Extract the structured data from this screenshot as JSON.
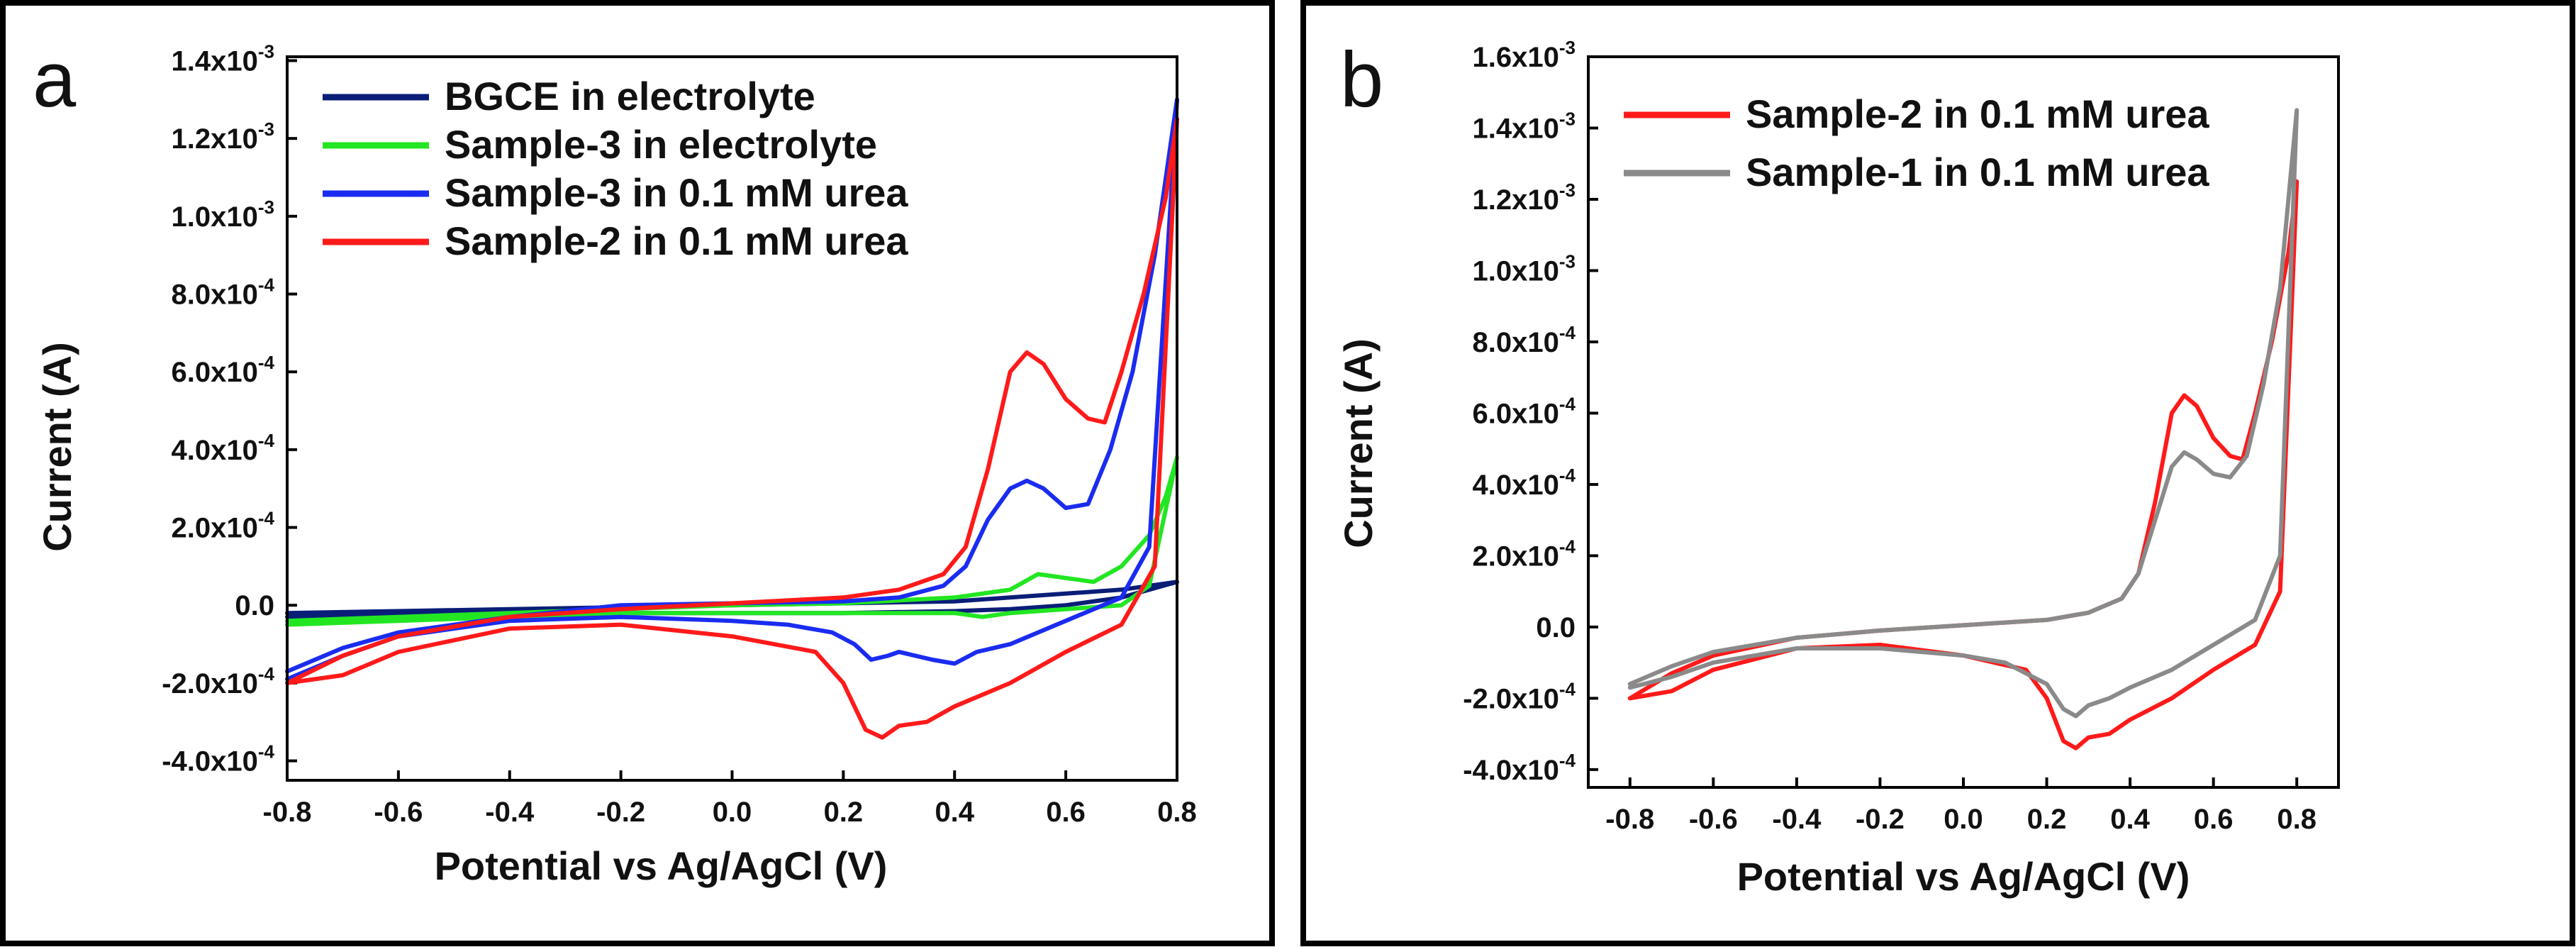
{
  "chart_data": [
    {
      "panel_label": "a",
      "type": "line",
      "xlabel": "Potential vs Ag/AgCl (V)",
      "ylabel": "Current (A)",
      "xlim": [
        -0.8,
        0.8
      ],
      "ylim": [
        -0.00045,
        0.00141
      ],
      "x_ticks": [
        -0.8,
        -0.6,
        -0.4,
        -0.2,
        0.0,
        0.2,
        0.4,
        0.6,
        0.8
      ],
      "x_tick_labels": [
        "-0.8",
        "-0.6",
        "-0.4",
        "-0.2",
        "0.0",
        "0.2",
        "0.4",
        "0.6",
        "0.8"
      ],
      "y_ticks": [
        {
          "value": -0.0004,
          "mant": "-4.0x10",
          "exp": "-4"
        },
        {
          "value": -0.0002,
          "mant": "-2.0x10",
          "exp": "-4"
        },
        {
          "value": 0.0,
          "mant": "0.0",
          "exp": ""
        },
        {
          "value": 0.0002,
          "mant": "2.0x10",
          "exp": "-4"
        },
        {
          "value": 0.0004,
          "mant": "4.0x10",
          "exp": "-4"
        },
        {
          "value": 0.0006,
          "mant": "6.0x10",
          "exp": "-4"
        },
        {
          "value": 0.0008,
          "mant": "8.0x10",
          "exp": "-4"
        },
        {
          "value": 0.001,
          "mant": "1.0x10",
          "exp": "-3"
        },
        {
          "value": 0.0012,
          "mant": "1.2x10",
          "exp": "-3"
        },
        {
          "value": 0.0014,
          "mant": "1.4x10",
          "exp": "-3"
        }
      ],
      "legend_position": "top-left",
      "series": [
        {
          "name": "BGCE in electrolyte",
          "color": "#0a1e78",
          "forward": [
            [
              -0.8,
              -2e-05
            ],
            [
              -0.6,
              -1.5e-05
            ],
            [
              -0.4,
              -1e-05
            ],
            [
              -0.2,
              -5e-06
            ],
            [
              0.0,
              0.0
            ],
            [
              0.2,
              5e-06
            ],
            [
              0.4,
              1e-05
            ],
            [
              0.5,
              2e-05
            ],
            [
              0.6,
              3e-05
            ],
            [
              0.7,
              4e-05
            ],
            [
              0.8,
              6e-05
            ]
          ],
          "reverse": [
            [
              0.8,
              6e-05
            ],
            [
              0.7,
              2e-05
            ],
            [
              0.6,
              0.0
            ],
            [
              0.5,
              -1e-05
            ],
            [
              0.4,
              -1.5e-05
            ],
            [
              0.2,
              -2e-05
            ],
            [
              0.0,
              -2e-05
            ],
            [
              -0.2,
              -2e-05
            ],
            [
              -0.4,
              -2e-05
            ],
            [
              -0.6,
              -2.5e-05
            ],
            [
              -0.8,
              -3e-05
            ]
          ]
        },
        {
          "name": "Sample-3 in electrolyte",
          "color": "#22e622",
          "forward": [
            [
              -0.8,
              -4e-05
            ],
            [
              -0.6,
              -3e-05
            ],
            [
              -0.4,
              -2e-05
            ],
            [
              -0.2,
              -1e-05
            ],
            [
              0.0,
              0.0
            ],
            [
              0.2,
              5e-06
            ],
            [
              0.4,
              2e-05
            ],
            [
              0.5,
              4e-05
            ],
            [
              0.55,
              8e-05
            ],
            [
              0.6,
              7e-05
            ],
            [
              0.65,
              6e-05
            ],
            [
              0.7,
              0.0001
            ],
            [
              0.75,
              0.00018
            ],
            [
              0.78,
              0.00028
            ],
            [
              0.8,
              0.00038
            ]
          ],
          "reverse": [
            [
              0.8,
              0.00038
            ],
            [
              0.75,
              5e-05
            ],
            [
              0.7,
              0.0
            ],
            [
              0.6,
              -1e-05
            ],
            [
              0.5,
              -2e-05
            ],
            [
              0.45,
              -3e-05
            ],
            [
              0.4,
              -2e-05
            ],
            [
              0.2,
              -2e-05
            ],
            [
              0.0,
              -2e-05
            ],
            [
              -0.2,
              -2e-05
            ],
            [
              -0.4,
              -3e-05
            ],
            [
              -0.6,
              -4e-05
            ],
            [
              -0.8,
              -5e-05
            ]
          ]
        },
        {
          "name": "Sample-3 in 0.1 mM urea",
          "color": "#1a2cf0",
          "forward": [
            [
              -0.8,
              -0.00017
            ],
            [
              -0.7,
              -0.00011
            ],
            [
              -0.6,
              -7e-05
            ],
            [
              -0.4,
              -3e-05
            ],
            [
              -0.2,
              0.0
            ],
            [
              0.0,
              5e-06
            ],
            [
              0.2,
              1e-05
            ],
            [
              0.3,
              2e-05
            ],
            [
              0.38,
              5e-05
            ],
            [
              0.42,
              0.0001
            ],
            [
              0.46,
              0.00022
            ],
            [
              0.5,
              0.0003
            ],
            [
              0.53,
              0.00032
            ],
            [
              0.56,
              0.0003
            ],
            [
              0.6,
              0.00025
            ],
            [
              0.64,
              0.00026
            ],
            [
              0.68,
              0.0004
            ],
            [
              0.72,
              0.0006
            ],
            [
              0.76,
              0.0009
            ],
            [
              0.8,
              0.0013
            ]
          ],
          "reverse": [
            [
              0.8,
              0.0013
            ],
            [
              0.75,
              0.00015
            ],
            [
              0.7,
              2e-05
            ],
            [
              0.6,
              -4e-05
            ],
            [
              0.5,
              -0.0001
            ],
            [
              0.44,
              -0.00012
            ],
            [
              0.4,
              -0.00015
            ],
            [
              0.36,
              -0.00014
            ],
            [
              0.3,
              -0.00012
            ],
            [
              0.28,
              -0.00013
            ],
            [
              0.25,
              -0.00014
            ],
            [
              0.22,
              -0.0001
            ],
            [
              0.18,
              -7e-05
            ],
            [
              0.1,
              -5e-05
            ],
            [
              0.0,
              -4e-05
            ],
            [
              -0.2,
              -3e-05
            ],
            [
              -0.4,
              -4e-05
            ],
            [
              -0.6,
              -8e-05
            ],
            [
              -0.7,
              -0.00013
            ],
            [
              -0.8,
              -0.00019
            ]
          ]
        },
        {
          "name": "Sample-2 in 0.1 mM urea",
          "color": "#ff1a1a",
          "forward": [
            [
              -0.8,
              -0.0002
            ],
            [
              -0.7,
              -0.00013
            ],
            [
              -0.6,
              -8e-05
            ],
            [
              -0.4,
              -3e-05
            ],
            [
              -0.2,
              -1e-05
            ],
            [
              0.0,
              5e-06
            ],
            [
              0.2,
              2e-05
            ],
            [
              0.3,
              4e-05
            ],
            [
              0.38,
              8e-05
            ],
            [
              0.42,
              0.00015
            ],
            [
              0.46,
              0.00035
            ],
            [
              0.5,
              0.0006
            ],
            [
              0.53,
              0.00065
            ],
            [
              0.56,
              0.00062
            ],
            [
              0.6,
              0.00053
            ],
            [
              0.64,
              0.00048
            ],
            [
              0.67,
              0.00047
            ],
            [
              0.7,
              0.0006
            ],
            [
              0.74,
              0.0008
            ],
            [
              0.78,
              0.00105
            ],
            [
              0.8,
              0.00125
            ]
          ],
          "reverse": [
            [
              0.8,
              0.00125
            ],
            [
              0.76,
              0.0001
            ],
            [
              0.7,
              -5e-05
            ],
            [
              0.6,
              -0.00012
            ],
            [
              0.5,
              -0.0002
            ],
            [
              0.4,
              -0.00026
            ],
            [
              0.35,
              -0.0003
            ],
            [
              0.3,
              -0.00031
            ],
            [
              0.27,
              -0.00034
            ],
            [
              0.24,
              -0.00032
            ],
            [
              0.2,
              -0.0002
            ],
            [
              0.15,
              -0.00012
            ],
            [
              0.0,
              -8e-05
            ],
            [
              -0.2,
              -5e-05
            ],
            [
              -0.4,
              -6e-05
            ],
            [
              -0.6,
              -0.00012
            ],
            [
              -0.7,
              -0.00018
            ],
            [
              -0.8,
              -0.0002
            ]
          ]
        }
      ]
    },
    {
      "panel_label": "b",
      "type": "line",
      "xlabel": "Potential vs Ag/AgCl (V)",
      "ylabel": "Current (A)",
      "xlim": [
        -0.9,
        0.9
      ],
      "ylim": [
        -0.00045,
        0.0016
      ],
      "x_ticks": [
        -0.8,
        -0.6,
        -0.4,
        -0.2,
        0.0,
        0.2,
        0.4,
        0.6,
        0.8
      ],
      "x_tick_labels": [
        "-0.8",
        "-0.6",
        "-0.4",
        "-0.2",
        "0.0",
        "0.2",
        "0.4",
        "0.6",
        "0.8"
      ],
      "y_ticks": [
        {
          "value": -0.0004,
          "mant": "-4.0x10",
          "exp": "-4"
        },
        {
          "value": -0.0002,
          "mant": "-2.0x10",
          "exp": "-4"
        },
        {
          "value": 0.0,
          "mant": "0.0",
          "exp": ""
        },
        {
          "value": 0.0002,
          "mant": "2.0x10",
          "exp": "-4"
        },
        {
          "value": 0.0004,
          "mant": "4.0x10",
          "exp": "-4"
        },
        {
          "value": 0.0006,
          "mant": "6.0x10",
          "exp": "-4"
        },
        {
          "value": 0.0008,
          "mant": "8.0x10",
          "exp": "-4"
        },
        {
          "value": 0.001,
          "mant": "1.0x10",
          "exp": "-3"
        },
        {
          "value": 0.0012,
          "mant": "1.2x10",
          "exp": "-3"
        },
        {
          "value": 0.0014,
          "mant": "1.4x10",
          "exp": "-3"
        },
        {
          "value": 0.0016,
          "mant": "1.6x10",
          "exp": "-3"
        }
      ],
      "legend_position": "top-left",
      "series": [
        {
          "name": "Sample-2 in 0.1 mM urea",
          "color": "#ff1a1a",
          "forward": [
            [
              -0.8,
              -0.0002
            ],
            [
              -0.7,
              -0.00013
            ],
            [
              -0.6,
              -8e-05
            ],
            [
              -0.4,
              -3e-05
            ],
            [
              -0.2,
              -1e-05
            ],
            [
              0.0,
              5e-06
            ],
            [
              0.2,
              2e-05
            ],
            [
              0.3,
              4e-05
            ],
            [
              0.38,
              8e-05
            ],
            [
              0.42,
              0.00015
            ],
            [
              0.46,
              0.00035
            ],
            [
              0.5,
              0.0006
            ],
            [
              0.53,
              0.00065
            ],
            [
              0.56,
              0.00062
            ],
            [
              0.6,
              0.00053
            ],
            [
              0.64,
              0.00048
            ],
            [
              0.67,
              0.00047
            ],
            [
              0.7,
              0.0006
            ],
            [
              0.74,
              0.0008
            ],
            [
              0.78,
              0.00105
            ],
            [
              0.8,
              0.00125
            ]
          ],
          "reverse": [
            [
              0.8,
              0.00125
            ],
            [
              0.76,
              0.0001
            ],
            [
              0.7,
              -5e-05
            ],
            [
              0.6,
              -0.00012
            ],
            [
              0.5,
              -0.0002
            ],
            [
              0.4,
              -0.00026
            ],
            [
              0.35,
              -0.0003
            ],
            [
              0.3,
              -0.00031
            ],
            [
              0.27,
              -0.00034
            ],
            [
              0.24,
              -0.00032
            ],
            [
              0.2,
              -0.0002
            ],
            [
              0.15,
              -0.00012
            ],
            [
              0.0,
              -8e-05
            ],
            [
              -0.2,
              -5e-05
            ],
            [
              -0.4,
              -6e-05
            ],
            [
              -0.6,
              -0.00012
            ],
            [
              -0.7,
              -0.00018
            ],
            [
              -0.8,
              -0.0002
            ]
          ]
        },
        {
          "name": "Sample-1 in 0.1 mM urea",
          "color": "#8a8a8a",
          "forward": [
            [
              -0.8,
              -0.00016
            ],
            [
              -0.7,
              -0.00011
            ],
            [
              -0.6,
              -7e-05
            ],
            [
              -0.4,
              -3e-05
            ],
            [
              -0.2,
              -1e-05
            ],
            [
              0.0,
              5e-06
            ],
            [
              0.2,
              2e-05
            ],
            [
              0.3,
              4e-05
            ],
            [
              0.38,
              8e-05
            ],
            [
              0.42,
              0.00015
            ],
            [
              0.46,
              0.0003
            ],
            [
              0.5,
              0.00045
            ],
            [
              0.53,
              0.00049
            ],
            [
              0.56,
              0.00047
            ],
            [
              0.6,
              0.00043
            ],
            [
              0.64,
              0.00042
            ],
            [
              0.68,
              0.00048
            ],
            [
              0.72,
              0.00068
            ],
            [
              0.76,
              0.00095
            ],
            [
              0.8,
              0.00145
            ]
          ],
          "reverse": [
            [
              0.8,
              0.00145
            ],
            [
              0.76,
              0.0002
            ],
            [
              0.7,
              2e-05
            ],
            [
              0.6,
              -5e-05
            ],
            [
              0.5,
              -0.00012
            ],
            [
              0.4,
              -0.00017
            ],
            [
              0.35,
              -0.0002
            ],
            [
              0.3,
              -0.00022
            ],
            [
              0.27,
              -0.00025
            ],
            [
              0.24,
              -0.00023
            ],
            [
              0.2,
              -0.00016
            ],
            [
              0.1,
              -0.0001
            ],
            [
              0.0,
              -8e-05
            ],
            [
              -0.2,
              -6e-05
            ],
            [
              -0.4,
              -6e-05
            ],
            [
              -0.6,
              -0.0001
            ],
            [
              -0.7,
              -0.00014
            ],
            [
              -0.8,
              -0.00017
            ]
          ]
        }
      ]
    }
  ]
}
